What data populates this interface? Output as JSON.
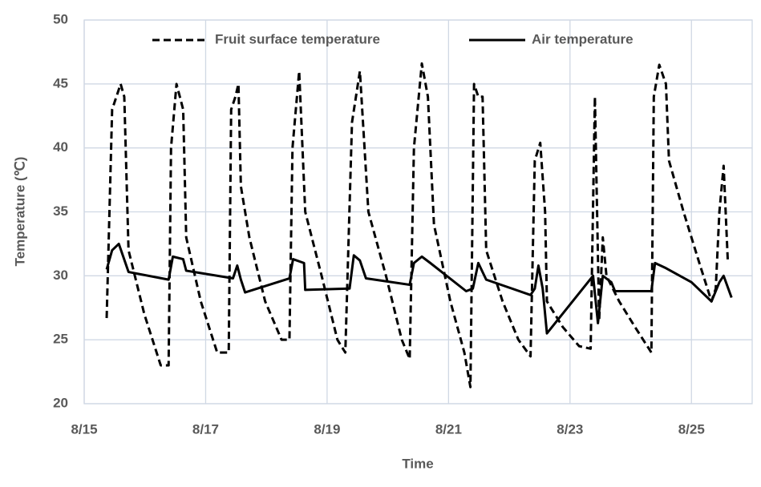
{
  "chart_data": {
    "type": "line",
    "x_label": "Time",
    "y_label": "Temperature (℃)",
    "xlim": [
      15,
      26
    ],
    "ylim": [
      20,
      50
    ],
    "xticks": [
      {
        "value": 15,
        "label": "8/15"
      },
      {
        "value": 17,
        "label": "8/17"
      },
      {
        "value": 19,
        "label": "8/19"
      },
      {
        "value": 21,
        "label": "8/21"
      },
      {
        "value": 23,
        "label": "8/23"
      },
      {
        "value": 25,
        "label": "8/25"
      }
    ],
    "yticks": [
      20,
      25,
      30,
      35,
      40,
      45,
      50
    ],
    "grid": true,
    "series": [
      {
        "name": "Fruit surface temperature",
        "color": "#000000",
        "dash": "dashed",
        "x": [
          15.37,
          15.46,
          15.6,
          15.66,
          15.73,
          15.99,
          16.26,
          16.39,
          16.43,
          16.52,
          16.63,
          16.68,
          16.92,
          17.19,
          17.38,
          17.42,
          17.49,
          17.54,
          17.58,
          17.72,
          17.98,
          18.25,
          18.38,
          18.43,
          18.54,
          18.64,
          18.91,
          19.17,
          19.3,
          19.41,
          19.54,
          19.68,
          19.97,
          20.23,
          20.36,
          20.43,
          20.56,
          20.66,
          20.76,
          21.03,
          21.26,
          21.36,
          21.42,
          21.49,
          21.56,
          21.62,
          21.89,
          22.15,
          22.35,
          22.42,
          22.51,
          22.59,
          22.62,
          22.88,
          23.15,
          23.34,
          23.41,
          23.48,
          23.54,
          23.6,
          23.81,
          24.07,
          24.34,
          24.38,
          24.47,
          24.58,
          24.63,
          24.87,
          25.13,
          25.33,
          25.4,
          25.46,
          25.53,
          25.6
        ],
        "values": [
          26.7,
          43,
          45,
          44,
          32,
          27,
          23,
          23,
          40,
          45,
          43,
          33,
          28,
          24,
          24,
          43,
          44,
          45,
          37,
          33,
          28,
          25,
          25,
          40,
          46,
          35,
          30,
          25,
          24,
          42,
          46,
          35,
          30,
          25,
          23.5,
          40,
          46.6,
          44,
          34,
          28,
          24,
          21.3,
          45,
          44,
          44,
          32,
          28,
          25,
          23.7,
          39,
          40.4,
          35,
          28,
          26,
          24.5,
          24.3,
          44,
          26.5,
          33,
          30,
          28,
          26,
          24,
          44,
          46.5,
          45,
          39,
          35,
          31,
          28,
          29,
          35,
          38.6,
          31
        ]
      },
      {
        "name": "Air temperature",
        "color": "#000000",
        "dash": "solid",
        "x": [
          15.37,
          15.46,
          15.57,
          15.73,
          16.39,
          16.46,
          16.63,
          16.68,
          17.45,
          17.52,
          17.58,
          17.65,
          18.38,
          18.44,
          18.62,
          18.64,
          19.37,
          19.44,
          19.54,
          19.64,
          20.36,
          20.43,
          20.56,
          20.7,
          21.29,
          21.4,
          21.49,
          21.62,
          22.35,
          22.42,
          22.48,
          22.55,
          22.62,
          23.38,
          23.46,
          23.54,
          23.68,
          23.74,
          24.34,
          24.4,
          24.58,
          25.0,
          25.33,
          25.46,
          25.53,
          25.66
        ],
        "values": [
          30.5,
          32,
          32.5,
          30.3,
          29.7,
          31.5,
          31.3,
          30.4,
          29.8,
          30.8,
          29.7,
          28.7,
          29.8,
          31.3,
          31,
          28.9,
          29,
          31.6,
          31.2,
          29.8,
          29.3,
          31,
          31.5,
          31,
          28.8,
          29,
          31,
          29.7,
          28.5,
          29,
          30.8,
          29,
          25.5,
          30,
          26.3,
          30,
          29.5,
          28.8,
          28.8,
          31,
          30.6,
          29.5,
          28,
          29.5,
          30,
          28.3
        ]
      }
    ]
  }
}
